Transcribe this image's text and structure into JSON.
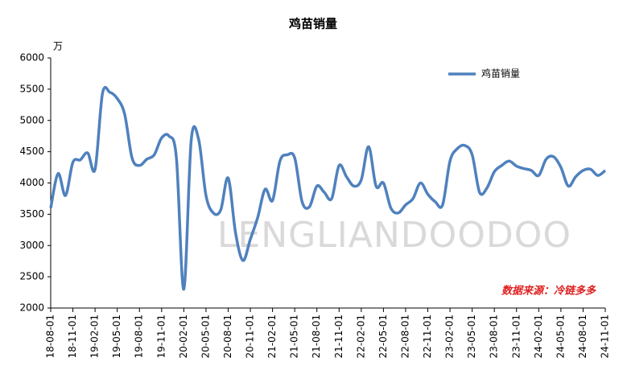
{
  "chart_data": {
    "type": "line",
    "title": "鸡苗销量",
    "y_unit": "万",
    "source": "数据来源：冷链多多",
    "watermark": "LENGLIANDOODOO",
    "categories": [
      "18-08-01",
      null,
      null,
      "18-11-01",
      null,
      null,
      "19-02-01",
      null,
      null,
      "19-05-01",
      null,
      null,
      "19-08-01",
      null,
      null,
      "19-11-01",
      null,
      null,
      "20-02-01",
      null,
      null,
      "20-05-01",
      null,
      null,
      "20-08-01",
      null,
      null,
      "20-11-01",
      null,
      null,
      "21-02-01",
      null,
      null,
      "21-05-01",
      null,
      null,
      "21-08-01",
      null,
      null,
      "21-11-01",
      null,
      null,
      "22-02-01",
      null,
      null,
      "22-05-01",
      null,
      null,
      "22-08-01",
      null,
      null,
      "22-11-01",
      null,
      null,
      "23-02-01",
      null,
      null,
      "23-05-01",
      null,
      null,
      "23-08-01",
      null,
      null,
      "23-11-01",
      null,
      null,
      "24-02-01",
      null,
      null,
      "24-05-01",
      null,
      null,
      "24-08-01",
      null,
      null,
      "24-11-01"
    ],
    "series": [
      {
        "name": "鸡苗销量",
        "color": "#4f81bd",
        "values": [
          3600,
          4150,
          3800,
          4330,
          4370,
          4480,
          4220,
          5430,
          5450,
          5350,
          5100,
          4400,
          4280,
          4380,
          4450,
          4720,
          4750,
          4400,
          2300,
          4680,
          4700,
          3800,
          3520,
          3570,
          4080,
          3200,
          2760,
          3100,
          3450,
          3900,
          3720,
          4350,
          4450,
          4400,
          3700,
          3620,
          3950,
          3850,
          3750,
          4280,
          4100,
          3950,
          4050,
          4580,
          3950,
          4000,
          3600,
          3520,
          3650,
          3750,
          4000,
          3820,
          3700,
          3650,
          4350,
          4550,
          4600,
          4450,
          3850,
          3920,
          4180,
          4280,
          4350,
          4270,
          4230,
          4200,
          4120,
          4380,
          4420,
          4250,
          3950,
          4100,
          4200,
          4220,
          4120,
          4200
        ]
      }
    ],
    "ylim": [
      2000,
      6000
    ],
    "yticks": [
      2000,
      2500,
      3000,
      3500,
      4000,
      4500,
      5000,
      5500,
      6000
    ],
    "grid": false,
    "legend": "top-right"
  }
}
